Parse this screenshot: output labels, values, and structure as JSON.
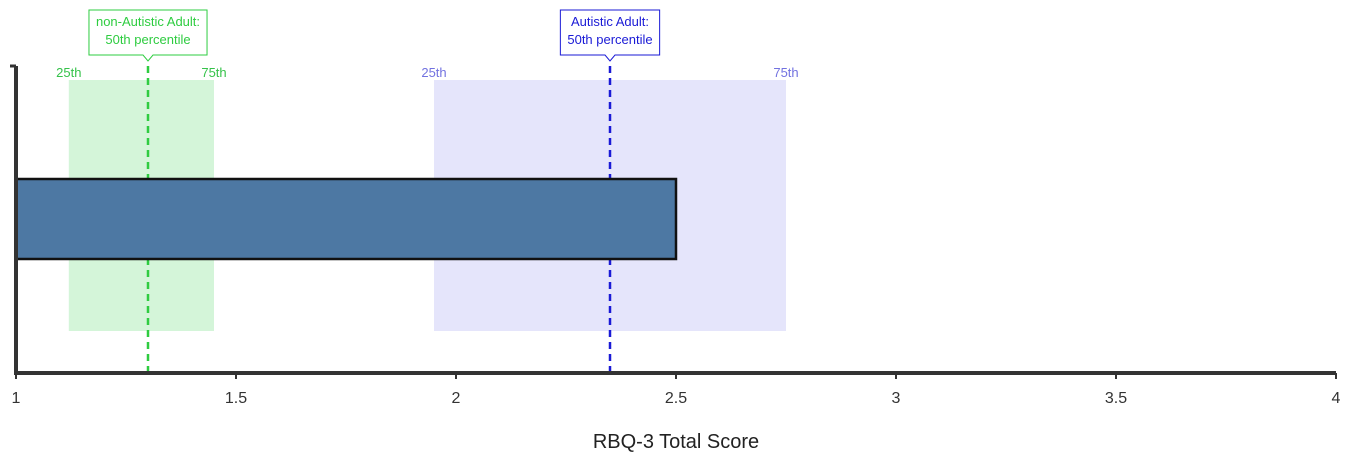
{
  "chart_data": {
    "type": "bar",
    "orientation": "horizontal",
    "xlabel": "RBQ-3 Total Score",
    "xlim": [
      1,
      4
    ],
    "xticks": [
      1,
      1.5,
      2,
      2.5,
      3,
      3.5,
      4
    ],
    "xtick_labels": [
      "1",
      "1.5",
      "2",
      "2.5",
      "3",
      "3.5",
      "4"
    ],
    "values": [
      2.5
    ],
    "bar_color": "#4d78a3",
    "reference_groups": [
      {
        "key": "non_autistic",
        "callout_line1": "non-Autistic Adult:",
        "callout_line2": "50th percentile",
        "p25": 1.12,
        "p50": 1.3,
        "p75": 1.45,
        "p25_label": "25th",
        "p75_label": "75th",
        "color": "#2ecc40",
        "label_color": "#35c24a",
        "band_color": "#d4f5d9"
      },
      {
        "key": "autistic",
        "callout_line1": "Autistic Adult:",
        "callout_line2": "50th percentile",
        "p25": 1.95,
        "p50": 2.35,
        "p75": 2.75,
        "p25_label": "25th",
        "p75_label": "75th",
        "color": "#1a1ad6",
        "label_color": "#7272e0",
        "band_color": "#e5e5fb"
      }
    ]
  }
}
